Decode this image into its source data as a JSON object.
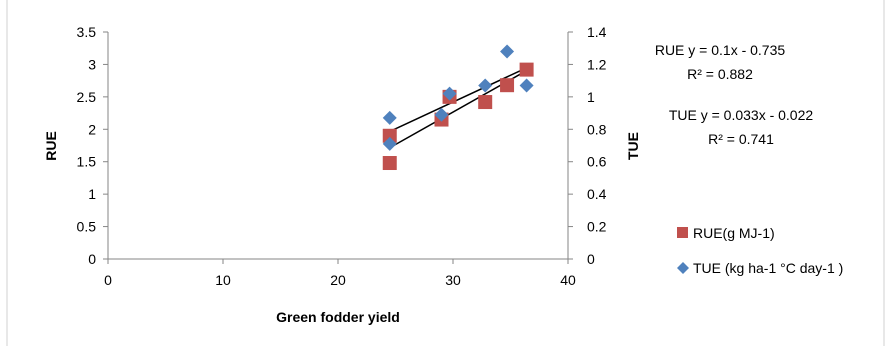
{
  "chart_data": {
    "type": "scatter",
    "xlabel": "Green fodder yield",
    "ylabel": "RUE",
    "y2label": "TUE",
    "xlim": [
      0,
      40
    ],
    "ylim": [
      0,
      3.5
    ],
    "y2lim": [
      0,
      1.4
    ],
    "x_ticks": [
      "0",
      "10",
      "20",
      "30",
      "40"
    ],
    "y_ticks": [
      "0",
      "0.5",
      "1",
      "1.5",
      "2",
      "2.5",
      "3",
      "3.5"
    ],
    "y2_ticks": [
      "0",
      "0.2",
      "0.4",
      "0.6",
      "0.8",
      "1",
      "1.2",
      "1.4"
    ],
    "grid": false,
    "legend_position": "right",
    "series": [
      {
        "name": "RUE(g MJ-1)",
        "axis": "left",
        "marker": "square",
        "color": "#C0504D",
        "points": [
          {
            "x": 24.5,
            "y": 1.9
          },
          {
            "x": 24.5,
            "y": 1.48
          },
          {
            "x": 29.0,
            "y": 2.15
          },
          {
            "x": 29.7,
            "y": 2.5
          },
          {
            "x": 32.8,
            "y": 2.42
          },
          {
            "x": 34.7,
            "y": 2.68
          },
          {
            "x": 36.4,
            "y": 2.92
          }
        ],
        "trendline": {
          "slope": 0.1,
          "intercept": -0.735,
          "x_from": 24.5,
          "x_to": 36.4
        },
        "equation": "RUE y = 0.1x - 0.735",
        "r2": "R² = 0.882"
      },
      {
        "name": "TUE (kg ha-1 °C day-1 )",
        "axis": "right",
        "marker": "diamond",
        "color": "#4F81BD",
        "points": [
          {
            "x": 24.5,
            "y": 0.87
          },
          {
            "x": 24.5,
            "y": 0.71
          },
          {
            "x": 29.0,
            "y": 0.89
          },
          {
            "x": 29.7,
            "y": 1.02
          },
          {
            "x": 32.8,
            "y": 1.07
          },
          {
            "x": 34.7,
            "y": 1.28
          },
          {
            "x": 36.4,
            "y": 1.07
          }
        ],
        "trendline": {
          "slope": 0.033,
          "intercept": -0.022,
          "x_from": 24.5,
          "x_to": 36.4
        },
        "equation": "TUE y = 0.033x - 0.022",
        "r2": "R² = 0.741"
      }
    ]
  }
}
